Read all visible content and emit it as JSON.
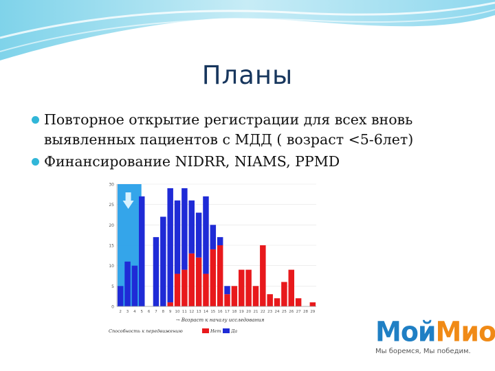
{
  "slide": {
    "title": "Планы",
    "bullets": [
      "Повторное открытие регистрации для всех вновь выявленных пациентов с МДД ( возраст <5-6лет)",
      "Финансирование NIDRR, NIAMS, PPMD"
    ]
  },
  "chart_data": {
    "type": "bar",
    "categories": [
      "2",
      "3",
      "4",
      "5",
      "6",
      "7",
      "8",
      "9",
      "10",
      "11",
      "12",
      "13",
      "14",
      "15",
      "16",
      "17",
      "18",
      "19",
      "20",
      "21",
      "22",
      "23",
      "24",
      "25",
      "26",
      "27",
      "28",
      "29"
    ],
    "ylim": [
      0,
      30
    ],
    "yticks": [
      "0",
      "5",
      "10",
      "15",
      "20",
      "25",
      "30"
    ],
    "xtick_labels": [
      "2",
      "3",
      "4",
      "5",
      "6",
      "7",
      "8",
      "9",
      "10",
      "11",
      "12",
      "13",
      "14",
      "15",
      "16",
      "17",
      "18",
      "19",
      "20",
      "21",
      "22",
      "23",
      "24",
      "25",
      "26",
      "27",
      "28",
      "29"
    ],
    "xlabel": "Возраст к началу исследования",
    "legend_caption": "Способность к передвижению",
    "series": [
      {
        "name": "Нет",
        "color": "#e8191c",
        "values": [
          0,
          0,
          0,
          0,
          0,
          0,
          0,
          1,
          8,
          9,
          13,
          12,
          8,
          14,
          15,
          3,
          5,
          9,
          9,
          5,
          15,
          3,
          2,
          6,
          9,
          2,
          0,
          1
        ]
      },
      {
        "name": "Да",
        "color": "#1f2bd6",
        "values": [
          5,
          11,
          10,
          27,
          0,
          17,
          22,
          28,
          18,
          20,
          13,
          11,
          19,
          6,
          2,
          2,
          0,
          0,
          0,
          0,
          0,
          0,
          0,
          0,
          0,
          0,
          0,
          0
        ]
      }
    ],
    "highlight_color": "#1e9be8"
  },
  "logo": {
    "part1": "Мой",
    "part2": "Мио",
    "tagline": "Мы боремся, Мы победим."
  }
}
